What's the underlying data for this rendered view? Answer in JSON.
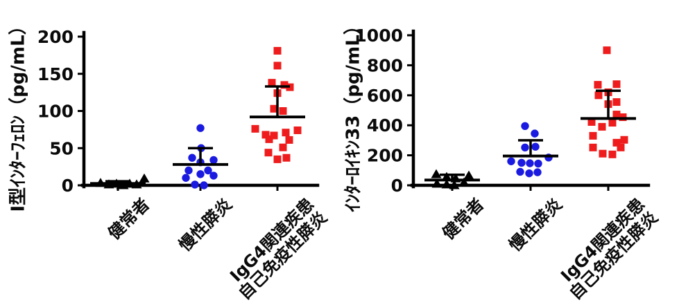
{
  "figure": {
    "background": "#ffffff",
    "axis_color": "#000000",
    "group_colors": {
      "healthy": "#000000",
      "chronic": "#1a1ae0",
      "igg4": "#ee1c1c"
    }
  },
  "chart_data": [
    {
      "type": "scatter",
      "panel": "left",
      "ylabel": "I型ｲﾝﾀｰﾌｪﾛﾝ（pg/mL）",
      "ylim": [
        0,
        200
      ],
      "yticks": [
        0,
        50,
        100,
        150,
        200
      ],
      "xlabels": [
        [
          "健常者"
        ],
        [
          "慢性膵炎"
        ],
        [
          "IgG4関連疾患",
          "自己免疫性膵炎"
        ]
      ],
      "groups": [
        {
          "label": "健常者",
          "marker": "triangle",
          "color": "#000000",
          "mean": 2.5,
          "sd_upper": 5.5,
          "points": [
            {
              "v": 9,
              "dx": 38
            },
            {
              "v": 3,
              "dx": -25
            },
            {
              "v": 1,
              "dx": -13
            },
            {
              "v": 2,
              "dx": -2
            },
            {
              "v": 0,
              "dx": 8
            },
            {
              "v": 2,
              "dx": 17
            },
            {
              "v": 1,
              "dx": 27
            },
            {
              "v": 0,
              "dx": 5
            }
          ]
        },
        {
          "label": "慢性膵炎",
          "marker": "circle",
          "color": "#1a1ae0",
          "mean": 28,
          "sd_upper": 50,
          "points": [
            {
              "v": 77,
              "dx": 0
            },
            {
              "v": 50,
              "dx": 1
            },
            {
              "v": 37,
              "dx": -12
            },
            {
              "v": 34,
              "dx": 19
            },
            {
              "v": 31,
              "dx": 0
            },
            {
              "v": 20,
              "dx": -17
            },
            {
              "v": 20,
              "dx": 11
            },
            {
              "v": 15,
              "dx": 0
            },
            {
              "v": 13,
              "dx": 19
            },
            {
              "v": 10,
              "dx": -21
            },
            {
              "v": 1,
              "dx": -8
            },
            {
              "v": 0,
              "dx": 5
            }
          ]
        },
        {
          "label": "IgG4関連疾患 自己免疫性膵炎",
          "marker": "square",
          "color": "#ee1c1c",
          "mean": 92,
          "sd_upper": 133,
          "points": [
            {
              "v": 181,
              "dx": 0
            },
            {
              "v": 161,
              "dx": 0
            },
            {
              "v": 138,
              "dx": -8
            },
            {
              "v": 135,
              "dx": 10
            },
            {
              "v": 132,
              "dx": 18
            },
            {
              "v": 124,
              "dx": 0
            },
            {
              "v": 103,
              "dx": -5
            },
            {
              "v": 100,
              "dx": 8
            },
            {
              "v": 76,
              "dx": -32
            },
            {
              "v": 74,
              "dx": 29
            },
            {
              "v": 71,
              "dx": 12
            },
            {
              "v": 68,
              "dx": -17
            },
            {
              "v": 67,
              "dx": -5
            },
            {
              "v": 62,
              "dx": -12
            },
            {
              "v": 61,
              "dx": 17
            },
            {
              "v": 51,
              "dx": 8
            },
            {
              "v": 44,
              "dx": -13
            },
            {
              "v": 37,
              "dx": 13
            },
            {
              "v": 35,
              "dx": 0
            }
          ]
        }
      ]
    },
    {
      "type": "scatter",
      "panel": "right",
      "ylabel": "ｲﾝﾀｰﾛｲｷﾝ33（pg/mL）",
      "ylim": [
        0,
        1000
      ],
      "yticks": [
        0,
        200,
        400,
        600,
        800,
        1000
      ],
      "xlabels": [
        [
          "健常者"
        ],
        [
          "慢性膵炎"
        ],
        [
          "IgG4関連疾患",
          "自己免疫性膵炎"
        ]
      ],
      "groups": [
        {
          "label": "健常者",
          "marker": "triangle",
          "color": "#000000",
          "mean": 35,
          "sd_upper": 70,
          "points": [
            {
              "v": 73,
              "dx": -23
            },
            {
              "v": 64,
              "dx": 24
            },
            {
              "v": 55,
              "dx": -8
            },
            {
              "v": 45,
              "dx": 5
            },
            {
              "v": 18,
              "dx": 17
            },
            {
              "v": 10,
              "dx": -22
            },
            {
              "v": 5,
              "dx": -8
            },
            {
              "v": 0,
              "dx": 3
            }
          ]
        },
        {
          "label": "慢性膵炎",
          "marker": "circle",
          "color": "#1a1ae0",
          "mean": 195,
          "sd_upper": 300,
          "points": [
            {
              "v": 395,
              "dx": -8
            },
            {
              "v": 345,
              "dx": 6
            },
            {
              "v": 257,
              "dx": 7
            },
            {
              "v": 252,
              "dx": -8
            },
            {
              "v": 185,
              "dx": 26
            },
            {
              "v": 160,
              "dx": -28
            },
            {
              "v": 150,
              "dx": -13
            },
            {
              "v": 147,
              "dx": -1
            },
            {
              "v": 145,
              "dx": 11
            },
            {
              "v": 90,
              "dx": -15
            },
            {
              "v": 87,
              "dx": 10
            },
            {
              "v": 80,
              "dx": -2
            }
          ]
        },
        {
          "label": "IgG4関連疾患 自己免疫性膵炎",
          "marker": "square",
          "color": "#ee1c1c",
          "mean": 445,
          "sd_upper": 630,
          "points": [
            {
              "v": 900,
              "dx": -2
            },
            {
              "v": 674,
              "dx": 12
            },
            {
              "v": 670,
              "dx": -15
            },
            {
              "v": 620,
              "dx": 0
            },
            {
              "v": 600,
              "dx": -14
            },
            {
              "v": 555,
              "dx": 12
            },
            {
              "v": 541,
              "dx": 0
            },
            {
              "v": 472,
              "dx": 12
            },
            {
              "v": 454,
              "dx": 21
            },
            {
              "v": 422,
              "dx": -24
            },
            {
              "v": 417,
              "dx": 6
            },
            {
              "v": 390,
              "dx": -9
            },
            {
              "v": 330,
              "dx": -22
            },
            {
              "v": 303,
              "dx": 23
            },
            {
              "v": 284,
              "dx": 12
            },
            {
              "v": 252,
              "dx": -22
            },
            {
              "v": 252,
              "dx": 18
            },
            {
              "v": 211,
              "dx": -8
            },
            {
              "v": 206,
              "dx": 6
            }
          ]
        }
      ]
    }
  ]
}
